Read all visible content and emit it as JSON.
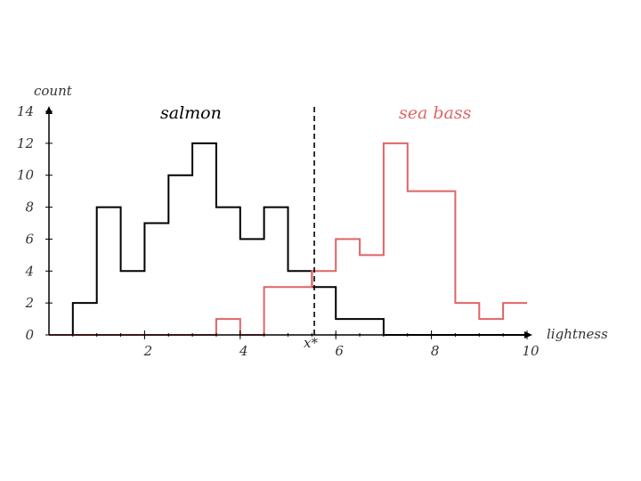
{
  "chart_data": {
    "type": "histogram",
    "xlabel": "lightness",
    "ylabel": "count",
    "xlim": [
      0,
      10
    ],
    "ylim": [
      0,
      14
    ],
    "x_ticks": [
      2,
      4,
      6,
      8,
      10
    ],
    "y_ticks": [
      0,
      2,
      4,
      6,
      8,
      10,
      12,
      14
    ],
    "threshold": {
      "label": "x*",
      "x": 5.55
    },
    "series": [
      {
        "name": "salmon",
        "color": "#000000",
        "edges": [
          0,
          0.5,
          1.0,
          1.5,
          2.0,
          2.5,
          3.0,
          3.5,
          4.0,
          4.5,
          5.0,
          5.5,
          6.0,
          7.0,
          10.0
        ],
        "counts": [
          0,
          2,
          8,
          4,
          7,
          10,
          12,
          8,
          6,
          8,
          4,
          3,
          1,
          0
        ]
      },
      {
        "name": "sea bass",
        "color": "#e06464",
        "edges": [
          0,
          3.5,
          4.0,
          4.5,
          5.5,
          6.0,
          6.5,
          7.0,
          7.5,
          8.5,
          9.0,
          9.5,
          10.0
        ],
        "counts": [
          0,
          1,
          0,
          3,
          4,
          6,
          5,
          12,
          9,
          2,
          1,
          2
        ]
      }
    ]
  }
}
